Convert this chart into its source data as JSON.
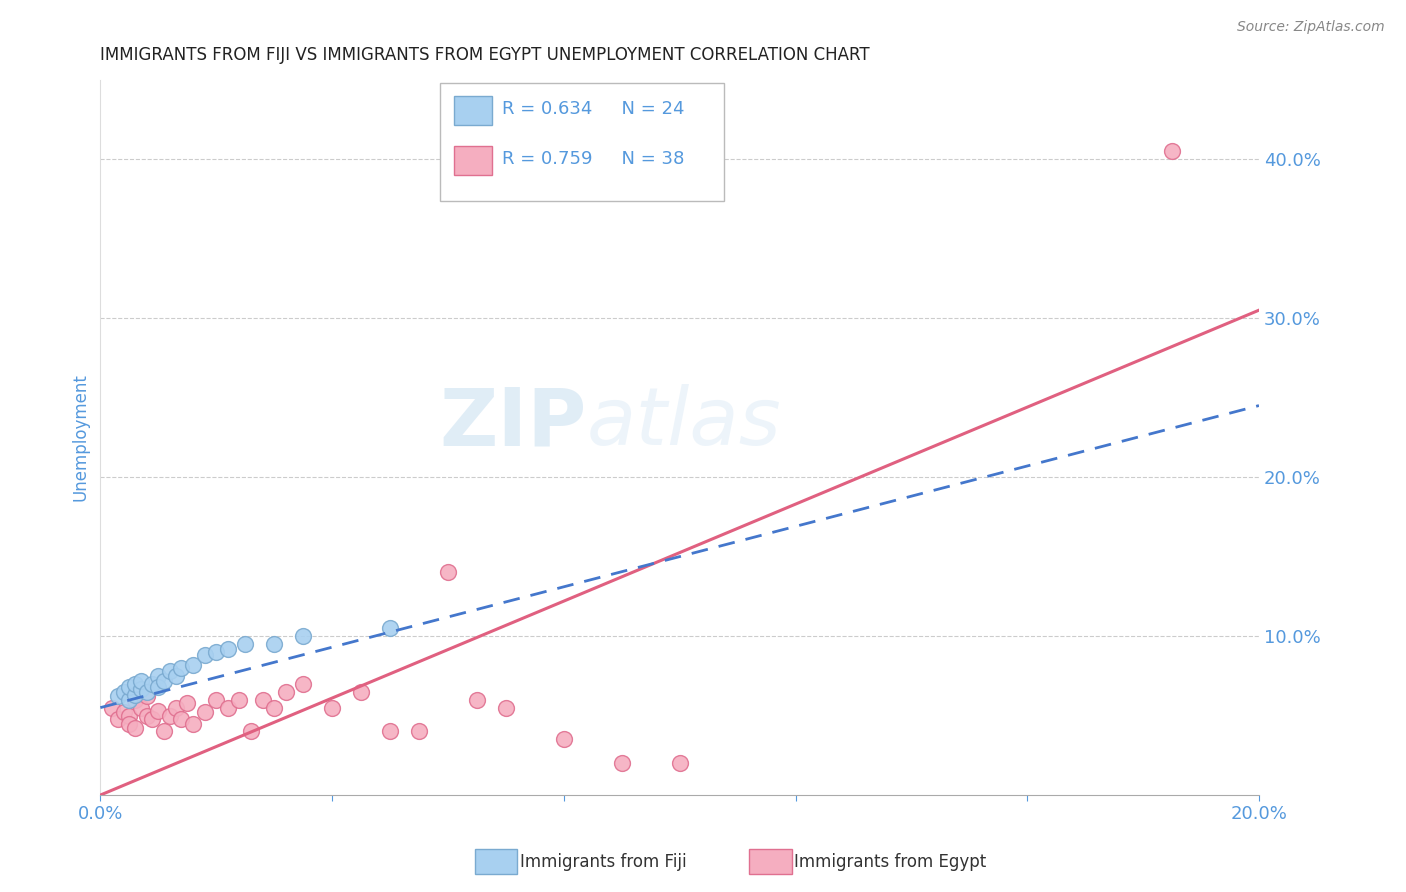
{
  "title": "IMMIGRANTS FROM FIJI VS IMMIGRANTS FROM EGYPT UNEMPLOYMENT CORRELATION CHART",
  "source": "Source: ZipAtlas.com",
  "ylabel": "Unemployment",
  "fiji_R": 0.634,
  "fiji_N": 24,
  "egypt_R": 0.759,
  "egypt_N": 38,
  "xlim": [
    0.0,
    0.2
  ],
  "ylim": [
    0.0,
    0.45
  ],
  "xticks": [
    0.0,
    0.04,
    0.08,
    0.12,
    0.16,
    0.2
  ],
  "xtick_labels": [
    "0.0%",
    "",
    "",
    "",
    "",
    "20.0%"
  ],
  "yticks_right": [
    0.1,
    0.2,
    0.3,
    0.4
  ],
  "ytick_right_labels": [
    "10.0%",
    "20.0%",
    "30.0%",
    "40.0%"
  ],
  "fiji_color": "#a8d0f0",
  "fiji_edge": "#7aaad0",
  "egypt_color": "#f5aec0",
  "egypt_edge": "#e07090",
  "fiji_line_color": "#4477cc",
  "egypt_line_color": "#e06080",
  "background_color": "#ffffff",
  "grid_color": "#cccccc",
  "axis_label_color": "#5599dd",
  "title_color": "#222222",
  "fiji_scatter_x": [
    0.003,
    0.004,
    0.005,
    0.005,
    0.006,
    0.006,
    0.007,
    0.007,
    0.008,
    0.009,
    0.01,
    0.01,
    0.011,
    0.012,
    0.013,
    0.014,
    0.016,
    0.018,
    0.02,
    0.022,
    0.025,
    0.03,
    0.035,
    0.05
  ],
  "fiji_scatter_y": [
    0.062,
    0.065,
    0.06,
    0.068,
    0.063,
    0.07,
    0.067,
    0.072,
    0.065,
    0.07,
    0.075,
    0.068,
    0.072,
    0.078,
    0.075,
    0.08,
    0.082,
    0.088,
    0.09,
    0.092,
    0.095,
    0.095,
    0.1,
    0.105
  ],
  "egypt_scatter_x": [
    0.002,
    0.003,
    0.004,
    0.005,
    0.005,
    0.006,
    0.006,
    0.007,
    0.008,
    0.008,
    0.009,
    0.01,
    0.011,
    0.012,
    0.013,
    0.014,
    0.015,
    0.016,
    0.018,
    0.02,
    0.022,
    0.024,
    0.026,
    0.028,
    0.03,
    0.032,
    0.035,
    0.04,
    0.045,
    0.05,
    0.055,
    0.06,
    0.065,
    0.07,
    0.08,
    0.09,
    0.1,
    0.185
  ],
  "egypt_scatter_y": [
    0.055,
    0.048,
    0.052,
    0.05,
    0.045,
    0.06,
    0.042,
    0.055,
    0.05,
    0.062,
    0.048,
    0.053,
    0.04,
    0.05,
    0.055,
    0.048,
    0.058,
    0.045,
    0.052,
    0.06,
    0.055,
    0.06,
    0.04,
    0.06,
    0.055,
    0.065,
    0.07,
    0.055,
    0.065,
    0.04,
    0.04,
    0.14,
    0.06,
    0.055,
    0.035,
    0.02,
    0.02,
    0.405
  ],
  "fiji_trend_x": [
    0.0,
    0.2
  ],
  "fiji_trend_y": [
    0.055,
    0.245
  ],
  "egypt_trend_x": [
    0.0,
    0.2
  ],
  "egypt_trend_y": [
    0.0,
    0.305
  ],
  "legend_fiji_label": "R = 0.634   N = 24",
  "legend_egypt_label": "R = 0.759   N = 38",
  "watermark": "ZIPatlas",
  "bottom_legend_fiji": "Immigrants from Fiji",
  "bottom_legend_egypt": "Immigrants from Egypt"
}
